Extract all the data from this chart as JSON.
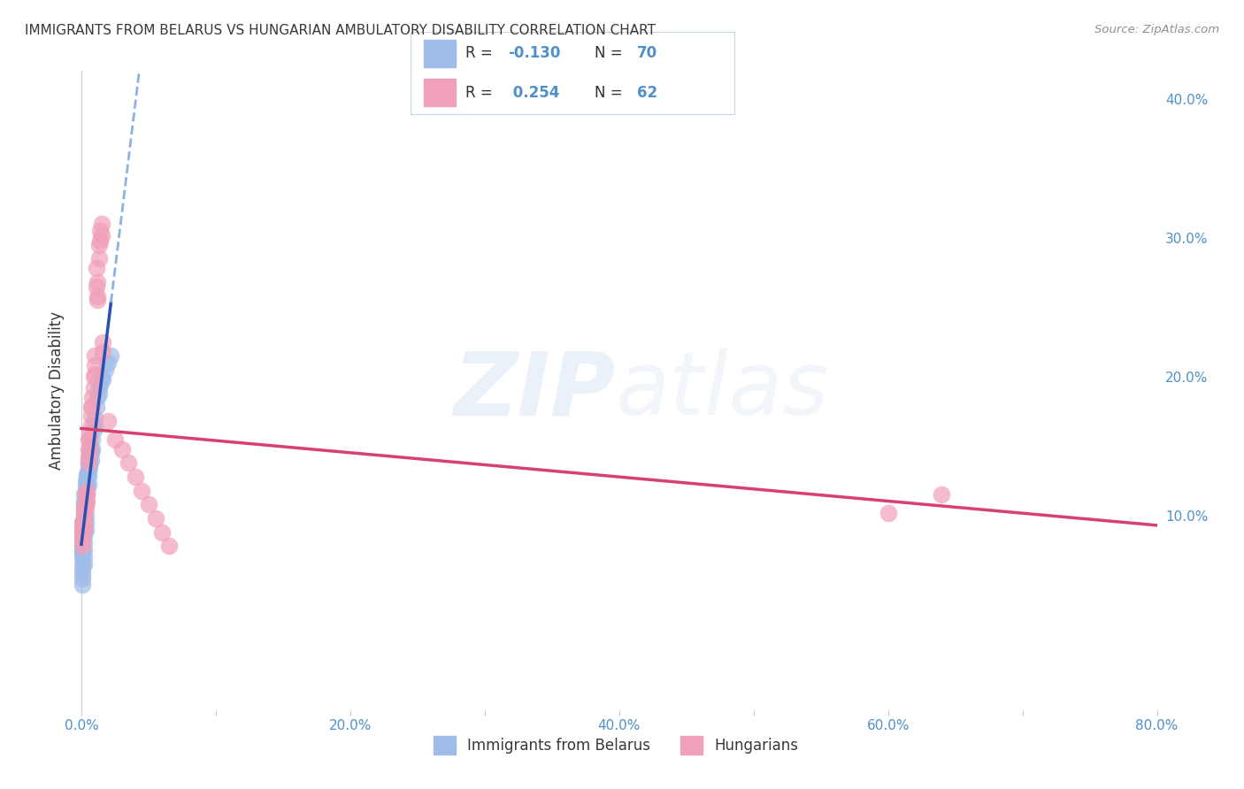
{
  "title": "IMMIGRANTS FROM BELARUS VS HUNGARIAN AMBULATORY DISABILITY CORRELATION CHART",
  "source": "Source: ZipAtlas.com",
  "ylabel": "Ambulatory Disability",
  "watermark": "ZIPatlas",
  "xlim": [
    -0.005,
    0.8
  ],
  "ylim": [
    -0.04,
    0.42
  ],
  "blue_color": "#a0bce8",
  "pink_color": "#f0a0b8",
  "blue_line_color": "#2850b0",
  "pink_line_color": "#d84070",
  "blue_dash_color": "#90b0e0",
  "grid_color": "#c8d4e8",
  "title_color": "#383838",
  "source_color": "#909090",
  "axis_label_color": "#383838",
  "tick_color": "#5090c8",
  "blue_r": "-0.130",
  "blue_n": "70",
  "pink_r": "0.254",
  "pink_n": "62",
  "blue_scatter_x": [
    0.0,
    0.0,
    0.0,
    0.001,
    0.001,
    0.001,
    0.001,
    0.001,
    0.001,
    0.001,
    0.001,
    0.001,
    0.001,
    0.001,
    0.001,
    0.001,
    0.001,
    0.002,
    0.002,
    0.002,
    0.002,
    0.002,
    0.002,
    0.002,
    0.002,
    0.002,
    0.002,
    0.002,
    0.002,
    0.002,
    0.003,
    0.003,
    0.003,
    0.003,
    0.003,
    0.003,
    0.003,
    0.003,
    0.003,
    0.004,
    0.004,
    0.004,
    0.004,
    0.004,
    0.005,
    0.005,
    0.005,
    0.005,
    0.005,
    0.006,
    0.006,
    0.006,
    0.007,
    0.007,
    0.007,
    0.008,
    0.008,
    0.009,
    0.01,
    0.01,
    0.011,
    0.012,
    0.013,
    0.013,
    0.014,
    0.015,
    0.016,
    0.018,
    0.02,
    0.022
  ],
  "blue_scatter_y": [
    0.08,
    0.078,
    0.075,
    0.095,
    0.09,
    0.088,
    0.085,
    0.082,
    0.078,
    0.076,
    0.073,
    0.07,
    0.065,
    0.062,
    0.058,
    0.055,
    0.05,
    0.115,
    0.11,
    0.108,
    0.105,
    0.102,
    0.098,
    0.095,
    0.09,
    0.085,
    0.08,
    0.075,
    0.07,
    0.065,
    0.125,
    0.122,
    0.118,
    0.115,
    0.11,
    0.108,
    0.1,
    0.095,
    0.09,
    0.13,
    0.128,
    0.122,
    0.118,
    0.115,
    0.138,
    0.135,
    0.132,
    0.128,
    0.122,
    0.142,
    0.138,
    0.135,
    0.148,
    0.145,
    0.14,
    0.155,
    0.148,
    0.162,
    0.17,
    0.165,
    0.178,
    0.185,
    0.192,
    0.188,
    0.195,
    0.2,
    0.198,
    0.205,
    0.21,
    0.215
  ],
  "pink_scatter_x": [
    0.0,
    0.0,
    0.001,
    0.001,
    0.001,
    0.001,
    0.001,
    0.001,
    0.002,
    0.002,
    0.002,
    0.002,
    0.002,
    0.003,
    0.003,
    0.003,
    0.003,
    0.004,
    0.004,
    0.004,
    0.005,
    0.005,
    0.005,
    0.005,
    0.006,
    0.006,
    0.006,
    0.007,
    0.007,
    0.007,
    0.008,
    0.008,
    0.009,
    0.009,
    0.01,
    0.01,
    0.01,
    0.011,
    0.011,
    0.012,
    0.012,
    0.012,
    0.013,
    0.013,
    0.014,
    0.014,
    0.015,
    0.015,
    0.016,
    0.016,
    0.02,
    0.025,
    0.03,
    0.035,
    0.04,
    0.045,
    0.05,
    0.055,
    0.06,
    0.065,
    0.6,
    0.64
  ],
  "pink_scatter_y": [
    0.09,
    0.085,
    0.095,
    0.09,
    0.088,
    0.085,
    0.082,
    0.078,
    0.105,
    0.102,
    0.098,
    0.095,
    0.09,
    0.115,
    0.112,
    0.108,
    0.105,
    0.118,
    0.115,
    0.11,
    0.155,
    0.148,
    0.142,
    0.138,
    0.16,
    0.155,
    0.148,
    0.178,
    0.172,
    0.165,
    0.185,
    0.178,
    0.2,
    0.192,
    0.215,
    0.208,
    0.202,
    0.278,
    0.265,
    0.255,
    0.268,
    0.258,
    0.295,
    0.285,
    0.305,
    0.298,
    0.31,
    0.302,
    0.225,
    0.218,
    0.168,
    0.155,
    0.148,
    0.138,
    0.128,
    0.118,
    0.108,
    0.098,
    0.088,
    0.078,
    0.102,
    0.115
  ]
}
